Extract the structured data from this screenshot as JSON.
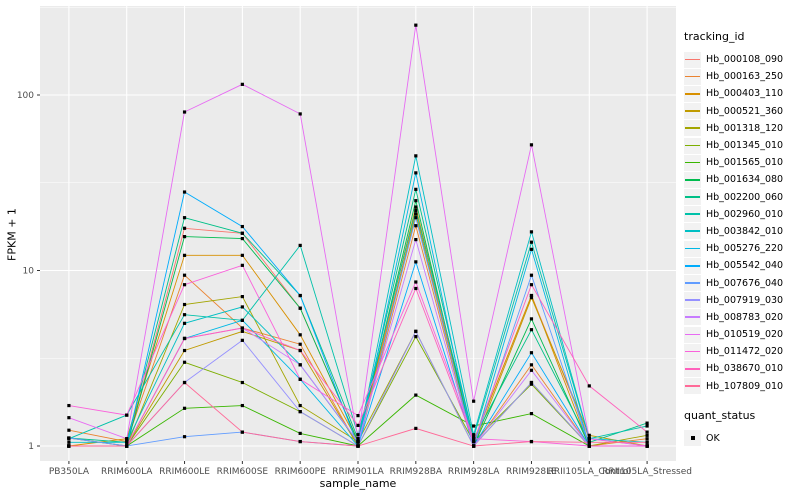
{
  "figure": {
    "panel_background": "#EBEBEB",
    "gridline_color": "#FFFFFF",
    "axis_text_color": "#4D4D4D",
    "tick_mark_color": "#333333",
    "point_color": "#000000"
  },
  "axes": {
    "x_title": "sample_name",
    "y_title": "FPKM + 1",
    "y_tick_labels": [
      "1",
      "10",
      "100"
    ]
  },
  "legend": {
    "tracking_title": "tracking_id",
    "quant_title": "quant_status",
    "quant_items": [
      {
        "label": "OK",
        "marker": "black-square"
      }
    ]
  },
  "chart_data": {
    "type": "line",
    "title": "",
    "xlabel": "sample_name",
    "ylabel": "FPKM + 1",
    "y_axis": {
      "scale": "log10",
      "ticks": [
        1,
        10,
        100
      ],
      "minor_ticks": [
        3.162,
        31.62,
        316.2
      ],
      "range": [
        1,
        320
      ]
    },
    "legend_position": "right",
    "grid": true,
    "point_legend": {
      "title": "quant_status",
      "label": "OK"
    },
    "categories": [
      "PB350LA",
      "RRIM600LA",
      "RRIM600LE",
      "RRIM600SE",
      "RRIM600PE",
      "RRIM901LA",
      "RRIM928BA",
      "RRIM928LA",
      "RRIM928LE",
      "RRII105LA_Control",
      "RRII105LA_Stressed"
    ],
    "series": [
      {
        "name": "Hb_000108_090",
        "color": "#F8766D",
        "values": [
          1.11,
          1.0,
          17.4,
          16.3,
          6.1,
          1.06,
          21,
          1.06,
          7.2,
          1.1,
          1.0
        ]
      },
      {
        "name": "Hb_000163_250",
        "color": "#EA8331",
        "values": [
          1.23,
          1.06,
          9.4,
          4.7,
          3.8,
          1.0,
          18,
          1.0,
          2.9,
          1.0,
          1.1
        ]
      },
      {
        "name": "Hb_000403_110",
        "color": "#D89000",
        "values": [
          1.0,
          1.1,
          12.2,
          12.2,
          4.3,
          1.06,
          23,
          1.06,
          7.2,
          1.0,
          1.0
        ]
      },
      {
        "name": "Hb_000521_360",
        "color": "#C09B00",
        "values": [
          1.11,
          1.0,
          3.5,
          4.5,
          3.5,
          1.0,
          21,
          1.0,
          7.0,
          1.15,
          1.0
        ]
      },
      {
        "name": "Hb_001318_120",
        "color": "#A3A500",
        "values": [
          1.0,
          1.0,
          6.4,
          7.1,
          1.7,
          1.06,
          4.5,
          1.0,
          2.3,
          1.0,
          1.15
        ]
      },
      {
        "name": "Hb_001345_010",
        "color": "#7CAE00",
        "values": [
          1.0,
          1.0,
          3.0,
          2.3,
          1.57,
          1.0,
          4.2,
          1.06,
          2.25,
          1.0,
          1.0
        ]
      },
      {
        "name": "Hb_001565_010",
        "color": "#39B600",
        "values": [
          1.0,
          1.0,
          1.64,
          1.7,
          1.18,
          1.0,
          1.95,
          1.3,
          1.53,
          1.0,
          1.0
        ]
      },
      {
        "name": "Hb_001634_080",
        "color": "#00BB4E",
        "values": [
          1.0,
          1.0,
          15.6,
          15.2,
          6.1,
          1.06,
          25,
          1.0,
          5.3,
          1.0,
          1.0
        ]
      },
      {
        "name": "Hb_002200_060",
        "color": "#00C087",
        "values": [
          1.11,
          1.05,
          20,
          16.3,
          7.2,
          1.1,
          29,
          1.1,
          4.6,
          1.05,
          1.35
        ]
      },
      {
        "name": "Hb_002960_010",
        "color": "#00C1A9",
        "values": [
          1.1,
          1.5,
          5.6,
          5.2,
          13.9,
          1.16,
          22,
          1.12,
          14.5,
          1.1,
          1.3
        ]
      },
      {
        "name": "Hb_003842_010",
        "color": "#00BFC4",
        "values": [
          1.05,
          1.05,
          5.0,
          6.2,
          2.9,
          1.05,
          45,
          1.16,
          16.6,
          1.1,
          1.05
        ]
      },
      {
        "name": "Hb_005276_220",
        "color": "#00B8E5",
        "values": [
          1.0,
          1.0,
          4.1,
          5.2,
          2.4,
          1.0,
          36,
          1.0,
          13.2,
          1.0,
          1.0
        ]
      },
      {
        "name": "Hb_005542_040",
        "color": "#00ACFC",
        "values": [
          1.0,
          1.0,
          28,
          17.8,
          7.2,
          1.0,
          11.2,
          1.0,
          3.4,
          1.0,
          1.0
        ]
      },
      {
        "name": "Hb_007676_040",
        "color": "#619CFF",
        "values": [
          1.11,
          1.0,
          1.13,
          1.2,
          1.06,
          1.0,
          20,
          1.0,
          9.4,
          1.0,
          1.0
        ]
      },
      {
        "name": "Hb_007919_030",
        "color": "#9590FF",
        "values": [
          1.0,
          1.0,
          2.3,
          4.0,
          1.57,
          1.0,
          4.5,
          1.0,
          2.3,
          1.0,
          1.0
        ]
      },
      {
        "name": "Hb_008783_020",
        "color": "#C77CFF",
        "values": [
          1.0,
          1.0,
          4.1,
          4.7,
          2.9,
          1.06,
          15,
          1.0,
          2.7,
          1.0,
          1.0
        ]
      },
      {
        "name": "Hb_010519_020",
        "color": "#E76BF3",
        "values": [
          1.45,
          1.1,
          80,
          115,
          78,
          1.1,
          250,
          1.8,
          52,
          1.1,
          1.0
        ]
      },
      {
        "name": "Hb_011472_020",
        "color": "#FA62DB",
        "values": [
          1.7,
          1.5,
          8.3,
          10.7,
          2.4,
          1.49,
          8.6,
          1.1,
          1.06,
          1.0,
          1.0
        ]
      },
      {
        "name": "Hb_038670_010",
        "color": "#FF62BC",
        "values": [
          1.0,
          1.0,
          4.1,
          4.7,
          3.5,
          1.31,
          7.9,
          1.06,
          8.3,
          2.2,
          1.2
        ]
      },
      {
        "name": "Hb_107809_010",
        "color": "#FF6A98",
        "values": [
          1.0,
          1.0,
          2.3,
          1.2,
          1.06,
          1.0,
          1.26,
          1.0,
          1.06,
          1.05,
          1.05
        ]
      }
    ]
  }
}
